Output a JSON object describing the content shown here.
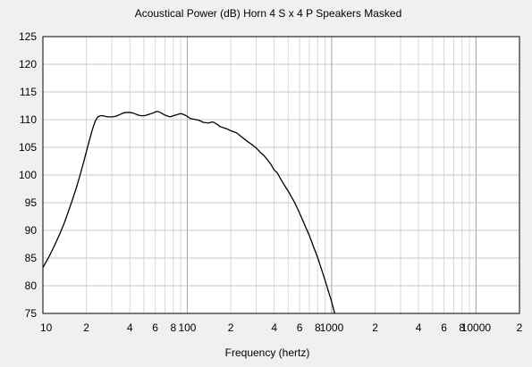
{
  "chart_data": {
    "type": "line",
    "title": "Acoustical Power (dB)   Horn   4 S x 4 P Speakers   Masked",
    "xlabel": "Frequency (hertz)",
    "ylabel": "",
    "x_scale": "log",
    "xlim": [
      10,
      20000
    ],
    "ylim": [
      75,
      125
    ],
    "grid": true,
    "y_ticks": [
      "125",
      "120",
      "115",
      "110",
      "105",
      "100",
      "95",
      "90",
      "85",
      "80",
      "75"
    ],
    "x_tick_labels": [
      {
        "x": 10,
        "label": "10"
      },
      {
        "x": 20,
        "label": "2"
      },
      {
        "x": 40,
        "label": "4"
      },
      {
        "x": 60,
        "label": "6"
      },
      {
        "x": 80,
        "label": "8"
      },
      {
        "x": 100,
        "label": "100"
      },
      {
        "x": 200,
        "label": "2"
      },
      {
        "x": 400,
        "label": "4"
      },
      {
        "x": 600,
        "label": "6"
      },
      {
        "x": 800,
        "label": "8"
      },
      {
        "x": 1000,
        "label": "1000"
      },
      {
        "x": 2000,
        "label": "2"
      },
      {
        "x": 4000,
        "label": "4"
      },
      {
        "x": 6000,
        "label": "6"
      },
      {
        "x": 8000,
        "label": "8"
      },
      {
        "x": 10000,
        "label": "10000"
      },
      {
        "x": 20000,
        "label": "2"
      }
    ],
    "series": [
      {
        "color": "#000000",
        "x": [
          10,
          11,
          12,
          13,
          14,
          15,
          16,
          17,
          18,
          19,
          20,
          21,
          22,
          23,
          24,
          25,
          26,
          27,
          28,
          30,
          32,
          34,
          36,
          38,
          40,
          42,
          44,
          46,
          48,
          50,
          52,
          55,
          58,
          60,
          62,
          65,
          68,
          72,
          76,
          80,
          85,
          90,
          95,
          100,
          105,
          110,
          115,
          120,
          130,
          140,
          150,
          160,
          170,
          180,
          190,
          200,
          220,
          240,
          260,
          280,
          300,
          320,
          340,
          360,
          380,
          400,
          420,
          450,
          480,
          500,
          550,
          600,
          650,
          700,
          750,
          800,
          850,
          900,
          950,
          1000,
          1050
        ],
        "y": [
          83.3,
          85.2,
          87.2,
          89.2,
          91.2,
          93.4,
          95.5,
          97.6,
          99.8,
          102.0,
          104.2,
          106.3,
          108.2,
          109.7,
          110.5,
          110.7,
          110.7,
          110.6,
          110.5,
          110.5,
          110.6,
          110.9,
          111.2,
          111.3,
          111.3,
          111.2,
          111.0,
          110.8,
          110.7,
          110.7,
          110.8,
          111.0,
          111.2,
          111.4,
          111.5,
          111.3,
          111.0,
          110.7,
          110.5,
          110.7,
          110.9,
          111.1,
          110.9,
          110.6,
          110.2,
          110.1,
          110.0,
          109.9,
          109.5,
          109.4,
          109.6,
          109.2,
          108.7,
          108.5,
          108.3,
          108.0,
          107.6,
          106.8,
          106.1,
          105.5,
          104.9,
          104.1,
          103.5,
          102.7,
          101.9,
          100.9,
          100.4,
          99.0,
          97.8,
          97.1,
          95.2,
          93.1,
          91.0,
          89.1,
          87.0,
          85.1,
          83.0,
          81.0,
          79.0,
          77.1,
          75.0
        ]
      }
    ]
  }
}
